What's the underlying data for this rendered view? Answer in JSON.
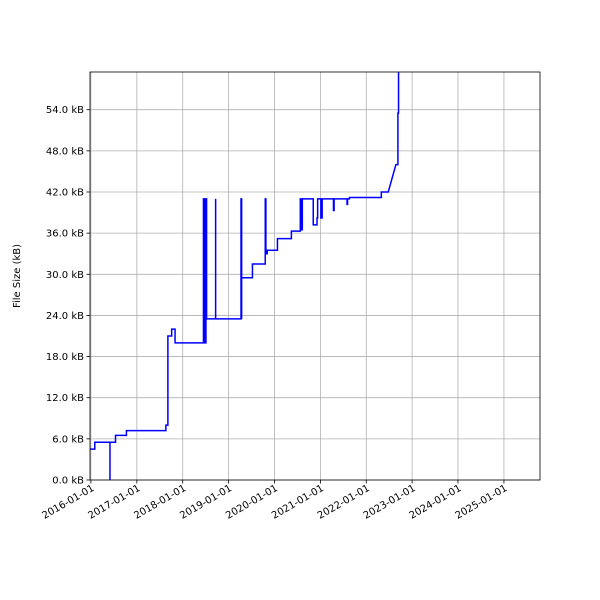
{
  "chart_data": {
    "type": "line",
    "title": "",
    "xlabel": "",
    "ylabel": "File Size (kB)",
    "x_type": "date",
    "xlim": [
      "2015-12-25",
      "2025-10-15"
    ],
    "ylim": [
      0,
      59.5
    ],
    "grid": true,
    "legend": "none",
    "line_color": "#0000ff",
    "x_tick_labels": [
      "2016-01-01",
      "2017-01-01",
      "2018-01-01",
      "2019-01-01",
      "2020-01-01",
      "2021-01-01",
      "2022-01-01",
      "2023-01-01",
      "2024-01-01",
      "2025-01-01"
    ],
    "y_ticks": [
      0,
      6,
      12,
      18,
      24,
      30,
      36,
      42,
      48,
      54
    ],
    "y_tick_labels": [
      "0.0 kB",
      "6.0 kB",
      "12.0 kB",
      "18.0 kB",
      "24.0 kB",
      "30.0 kB",
      "36.0 kB",
      "42.0 kB",
      "48.0 kB",
      "54.0 kB"
    ],
    "series": [
      {
        "x": [
          "2015-12-25",
          "2016-02-01",
          "2016-02-01",
          "2016-06-01",
          "2016-06-01",
          "2016-06-01",
          "2016-06-01",
          "2016-07-15",
          "2016-07-15",
          "2016-10-10",
          "2016-10-10",
          "2017-08-20",
          "2017-08-20",
          "2017-09-05",
          "2017-09-05",
          "2017-10-05",
          "2017-10-05",
          "2017-11-01",
          "2017-11-01",
          "2018-06-15",
          "2018-06-15",
          "2018-06-20",
          "2018-06-20",
          "2018-06-25",
          "2018-06-25",
          "2018-06-30",
          "2018-06-30",
          "2018-07-05",
          "2018-07-05",
          "2018-07-10",
          "2018-07-10",
          "2018-09-20",
          "2018-09-20",
          "2018-09-20",
          "2018-09-20",
          "2019-04-10",
          "2019-04-10",
          "2019-04-15",
          "2019-04-15",
          "2019-04-15",
          "2019-04-15",
          "2019-07-10",
          "2019-07-10",
          "2019-10-20",
          "2019-10-20",
          "2019-10-25",
          "2019-10-25",
          "2019-11-05",
          "2019-11-05",
          "2020-01-25",
          "2020-01-25",
          "2020-05-15",
          "2020-05-15",
          "2020-07-25",
          "2020-07-25",
          "2020-08-05",
          "2020-08-05",
          "2020-08-10",
          "2020-08-10",
          "2020-11-05",
          "2020-11-05",
          "2020-12-05",
          "2020-12-05",
          "2020-12-10",
          "2020-12-10",
          "2021-01-05",
          "2021-01-05",
          "2021-01-15",
          "2021-01-15",
          "2021-04-15",
          "2021-04-15",
          "2021-04-20",
          "2021-04-20",
          "2021-08-01",
          "2021-08-01",
          "2021-08-05",
          "2021-08-05",
          "2021-08-20",
          "2021-08-20",
          "2022-05-01",
          "2022-05-01",
          "2022-06-25",
          "2022-08-25",
          "2022-09-10",
          "2022-09-10",
          "2022-09-15",
          "2022-09-15",
          "2022-09-25",
          "2022-09-25"
        ],
        "y": [
          4.5,
          4.5,
          5.5,
          5.5,
          0,
          0,
          5.5,
          5.5,
          6.5,
          6.5,
          7.2,
          7.2,
          8,
          8,
          21,
          21,
          22,
          22,
          20,
          20,
          41,
          41,
          20,
          20,
          41,
          41,
          20,
          20,
          41,
          41,
          23.5,
          23.5,
          41,
          41,
          23.5,
          23.5,
          41,
          41,
          23.5,
          23.5,
          29.5,
          29.5,
          31.5,
          31.5,
          41,
          41,
          33,
          33,
          33.5,
          33.5,
          35.2,
          35.2,
          36.3,
          36.3,
          41,
          41,
          36.5,
          36.5,
          41,
          41,
          37.2,
          37.2,
          38.2,
          38.2,
          41,
          41,
          38.2,
          38.2,
          41,
          41,
          39.3,
          39.3,
          41,
          41,
          40.2,
          40.2,
          41,
          41,
          41.2,
          41.2,
          42,
          42,
          46,
          46,
          53.5,
          53.5,
          60,
          60,
          59.5
        ]
      }
    ]
  }
}
